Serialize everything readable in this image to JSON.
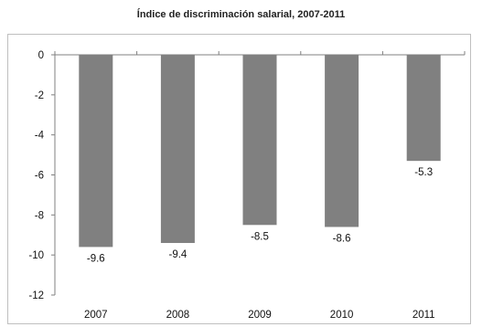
{
  "chart_data": {
    "type": "bar",
    "title": "Índice de discriminación salarial, 2007-2011",
    "xlabel": "",
    "ylabel": "",
    "categories": [
      "2007",
      "2008",
      "2009",
      "2010",
      "2011"
    ],
    "values": [
      -9.6,
      -9.4,
      -8.5,
      -8.6,
      -5.3
    ],
    "data_labels": [
      "-9.6",
      "-9.4",
      "-8.5",
      "-8.6",
      "-5.3"
    ],
    "ylim": [
      -12,
      0
    ],
    "y_ticks": [
      0,
      -2,
      -4,
      -6,
      -8,
      -10,
      -12
    ],
    "y_tick_labels": [
      "0",
      "-2",
      "-4",
      "-6",
      "-8",
      "-10",
      "-12"
    ],
    "grid": false,
    "legend": "none",
    "bar_color": "#808080"
  }
}
